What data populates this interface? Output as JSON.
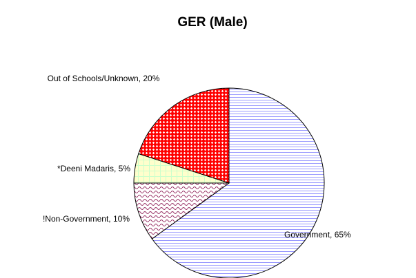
{
  "chart_data": {
    "type": "pie",
    "title": "GER (Male)",
    "categories": [
      "Government",
      "!Non-Government",
      "*Deeni Madaris",
      "Out of Schools/Unknown"
    ],
    "values": [
      65,
      10,
      5,
      20
    ],
    "value_labels": [
      "Government, 65%",
      "!Non-Government, 10%",
      "*Deeni Madaris, 5%",
      "Out of Schools/Unknown, 20%"
    ],
    "colors": [
      "#9999ff",
      "#993366",
      "#ccffcc",
      "#ff0000"
    ]
  }
}
